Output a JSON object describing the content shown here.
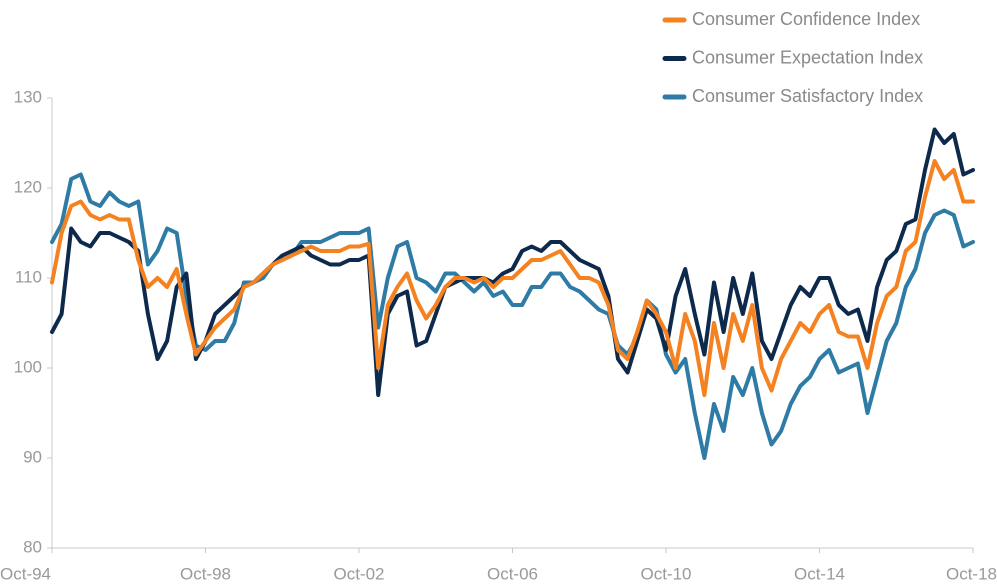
{
  "chart_data": {
    "type": "line",
    "categories": [
      "Oct-94",
      null,
      null,
      null,
      null,
      null,
      null,
      null,
      null,
      null,
      null,
      null,
      null,
      null,
      null,
      null,
      "Oct-98",
      null,
      null,
      null,
      null,
      null,
      null,
      null,
      null,
      null,
      null,
      null,
      null,
      null,
      null,
      null,
      "Oct-02",
      null,
      null,
      null,
      null,
      null,
      null,
      null,
      null,
      null,
      null,
      null,
      null,
      null,
      null,
      null,
      "Oct-06",
      null,
      null,
      null,
      null,
      null,
      null,
      null,
      null,
      null,
      null,
      null,
      null,
      null,
      null,
      null,
      "Oct-10",
      null,
      null,
      null,
      null,
      null,
      null,
      null,
      null,
      null,
      null,
      null,
      null,
      null,
      null,
      null,
      "Oct-14",
      null,
      null,
      null,
      null,
      null,
      null,
      null,
      null,
      null,
      null,
      null,
      null,
      null,
      null,
      null,
      "Oct-18"
    ],
    "series": [
      {
        "name": "Consumer Confidence Index",
        "color": "#f58220",
        "values": [
          109.5,
          115,
          118,
          118.5,
          117,
          116.5,
          117,
          116.5,
          116.5,
          112,
          109,
          110,
          109,
          111,
          106,
          101.5,
          103,
          104.5,
          105.5,
          106.5,
          109,
          109.5,
          110.5,
          111.5,
          112,
          112.5,
          113,
          113.5,
          113,
          113,
          113,
          113.5,
          113.5,
          113.8,
          100,
          107,
          109,
          110.5,
          107.5,
          105.5,
          107,
          109,
          110,
          110,
          109.5,
          110,
          109,
          110,
          110,
          111,
          112,
          112,
          112.5,
          113,
          111.5,
          110,
          110,
          109.5,
          107,
          102,
          101,
          104,
          107.5,
          106,
          104,
          100,
          106,
          103,
          97,
          105,
          100,
          106,
          103,
          107,
          100,
          97.5,
          101,
          103,
          105,
          104,
          106,
          107,
          104,
          103.5,
          103.5,
          100,
          105,
          108,
          109,
          113,
          114,
          119,
          123,
          121,
          122,
          118.5,
          118.5
        ]
      },
      {
        "name": "Consumer Expectation Index",
        "color": "#0d2a4d",
        "values": [
          104,
          106,
          115.5,
          114,
          113.5,
          115,
          115,
          114.5,
          114,
          113,
          106,
          101,
          103,
          109,
          110.5,
          101,
          103,
          106,
          107,
          108,
          109,
          109.5,
          110.5,
          111.5,
          112.5,
          113,
          113.5,
          112.5,
          112,
          111.5,
          111.5,
          112,
          112,
          112.5,
          97,
          106,
          108,
          108.5,
          102.5,
          103,
          106,
          109,
          109.5,
          110,
          110,
          110,
          109.5,
          110.5,
          111,
          113,
          113.5,
          113,
          114,
          114,
          113,
          112,
          111.5,
          111,
          108,
          101,
          99.5,
          103,
          106.5,
          105.5,
          102,
          108,
          111,
          106,
          101.5,
          109.5,
          104,
          110,
          106,
          110.5,
          103,
          101,
          104,
          107,
          109,
          108,
          110,
          110,
          107,
          106,
          106.5,
          103,
          109,
          112,
          113,
          116,
          116.5,
          122,
          126.5,
          125,
          126,
          121.5,
          122
        ]
      },
      {
        "name": "Consumer Satisfactory Index",
        "color": "#2e7ba6",
        "values": [
          114,
          116,
          121,
          121.5,
          118.5,
          118,
          119.5,
          118.5,
          118,
          118.5,
          111.5,
          113,
          115.5,
          115,
          108,
          102.5,
          102,
          103,
          103,
          105,
          109.5,
          109.5,
          110,
          111.5,
          112,
          112.5,
          114,
          114,
          114,
          114.5,
          115,
          115,
          115,
          115.5,
          104.5,
          110,
          113.5,
          114,
          110,
          109.5,
          108.5,
          110.5,
          110.5,
          109.5,
          108.5,
          109.5,
          108,
          108.5,
          107,
          107,
          109,
          109,
          110.5,
          110.5,
          109,
          108.5,
          107.5,
          106.5,
          106,
          102.5,
          101.5,
          103.5,
          107.5,
          106.5,
          101.5,
          99.5,
          101,
          95,
          90,
          96,
          93,
          99,
          97,
          100,
          95,
          91.5,
          93,
          96,
          98,
          99,
          101,
          102,
          99.5,
          100,
          100.5,
          95,
          99,
          103,
          105,
          109,
          111,
          115,
          117,
          117.5,
          117,
          113.5,
          114
        ]
      }
    ],
    "ylim": [
      80,
      130
    ],
    "yticks": [
      80,
      90,
      100,
      110,
      120,
      130
    ],
    "legend": "top-right"
  }
}
